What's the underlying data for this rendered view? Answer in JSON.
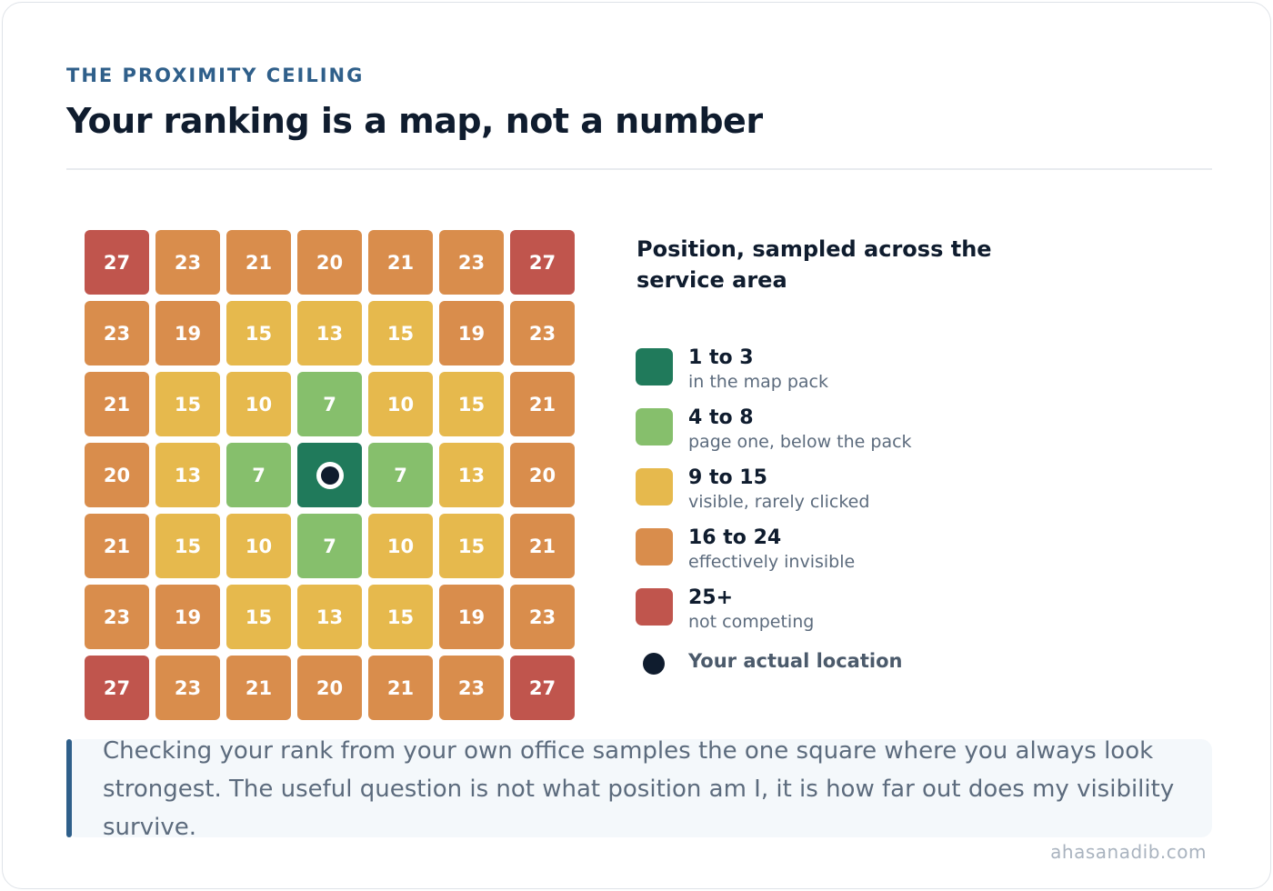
{
  "header": {
    "eyebrow": "THE PROXIMITY CEILING",
    "title": "Your ranking is a map, not a number"
  },
  "grid": {
    "rows": [
      [
        27,
        23,
        21,
        20,
        21,
        23,
        27
      ],
      [
        23,
        19,
        15,
        13,
        15,
        19,
        23
      ],
      [
        21,
        15,
        10,
        7,
        10,
        15,
        21
      ],
      [
        20,
        13,
        7,
        null,
        7,
        13,
        20
      ],
      [
        21,
        15,
        10,
        7,
        10,
        15,
        21
      ],
      [
        23,
        19,
        15,
        13,
        15,
        19,
        23
      ],
      [
        27,
        23,
        21,
        20,
        21,
        23,
        27
      ]
    ],
    "center_band": "1 to 3",
    "marker_cell": [
      3,
      3
    ]
  },
  "legend": {
    "title": "Position, sampled across the service area",
    "items": [
      {
        "range": "1 to 3",
        "desc": "in the map pack",
        "min": 1,
        "max": 3,
        "color": "#207a5b"
      },
      {
        "range": "4 to 8",
        "desc": "page one, below the pack",
        "min": 4,
        "max": 8,
        "color": "#86bf6c"
      },
      {
        "range": "9 to 15",
        "desc": "visible, rarely clicked",
        "min": 9,
        "max": 15,
        "color": "#e6b94d"
      },
      {
        "range": "16 to 24",
        "desc": "effectively invisible",
        "min": 16,
        "max": 24,
        "color": "#d98d4c"
      },
      {
        "range": "25+",
        "desc": "not competing",
        "min": 25,
        "max": 999,
        "color": "#c0554d"
      }
    ],
    "location_label": "Your actual location"
  },
  "callout": {
    "text": "Checking your rank from your own office samples the one square where you always look strongest. The useful question is not what position am I, it is how far out does my visibility survive."
  },
  "footer": {
    "site": "ahasanadib.com"
  },
  "colors": {
    "accent": "#2f5f8a",
    "heading": "#0f1c2e",
    "marker": "#0f1c2e"
  }
}
